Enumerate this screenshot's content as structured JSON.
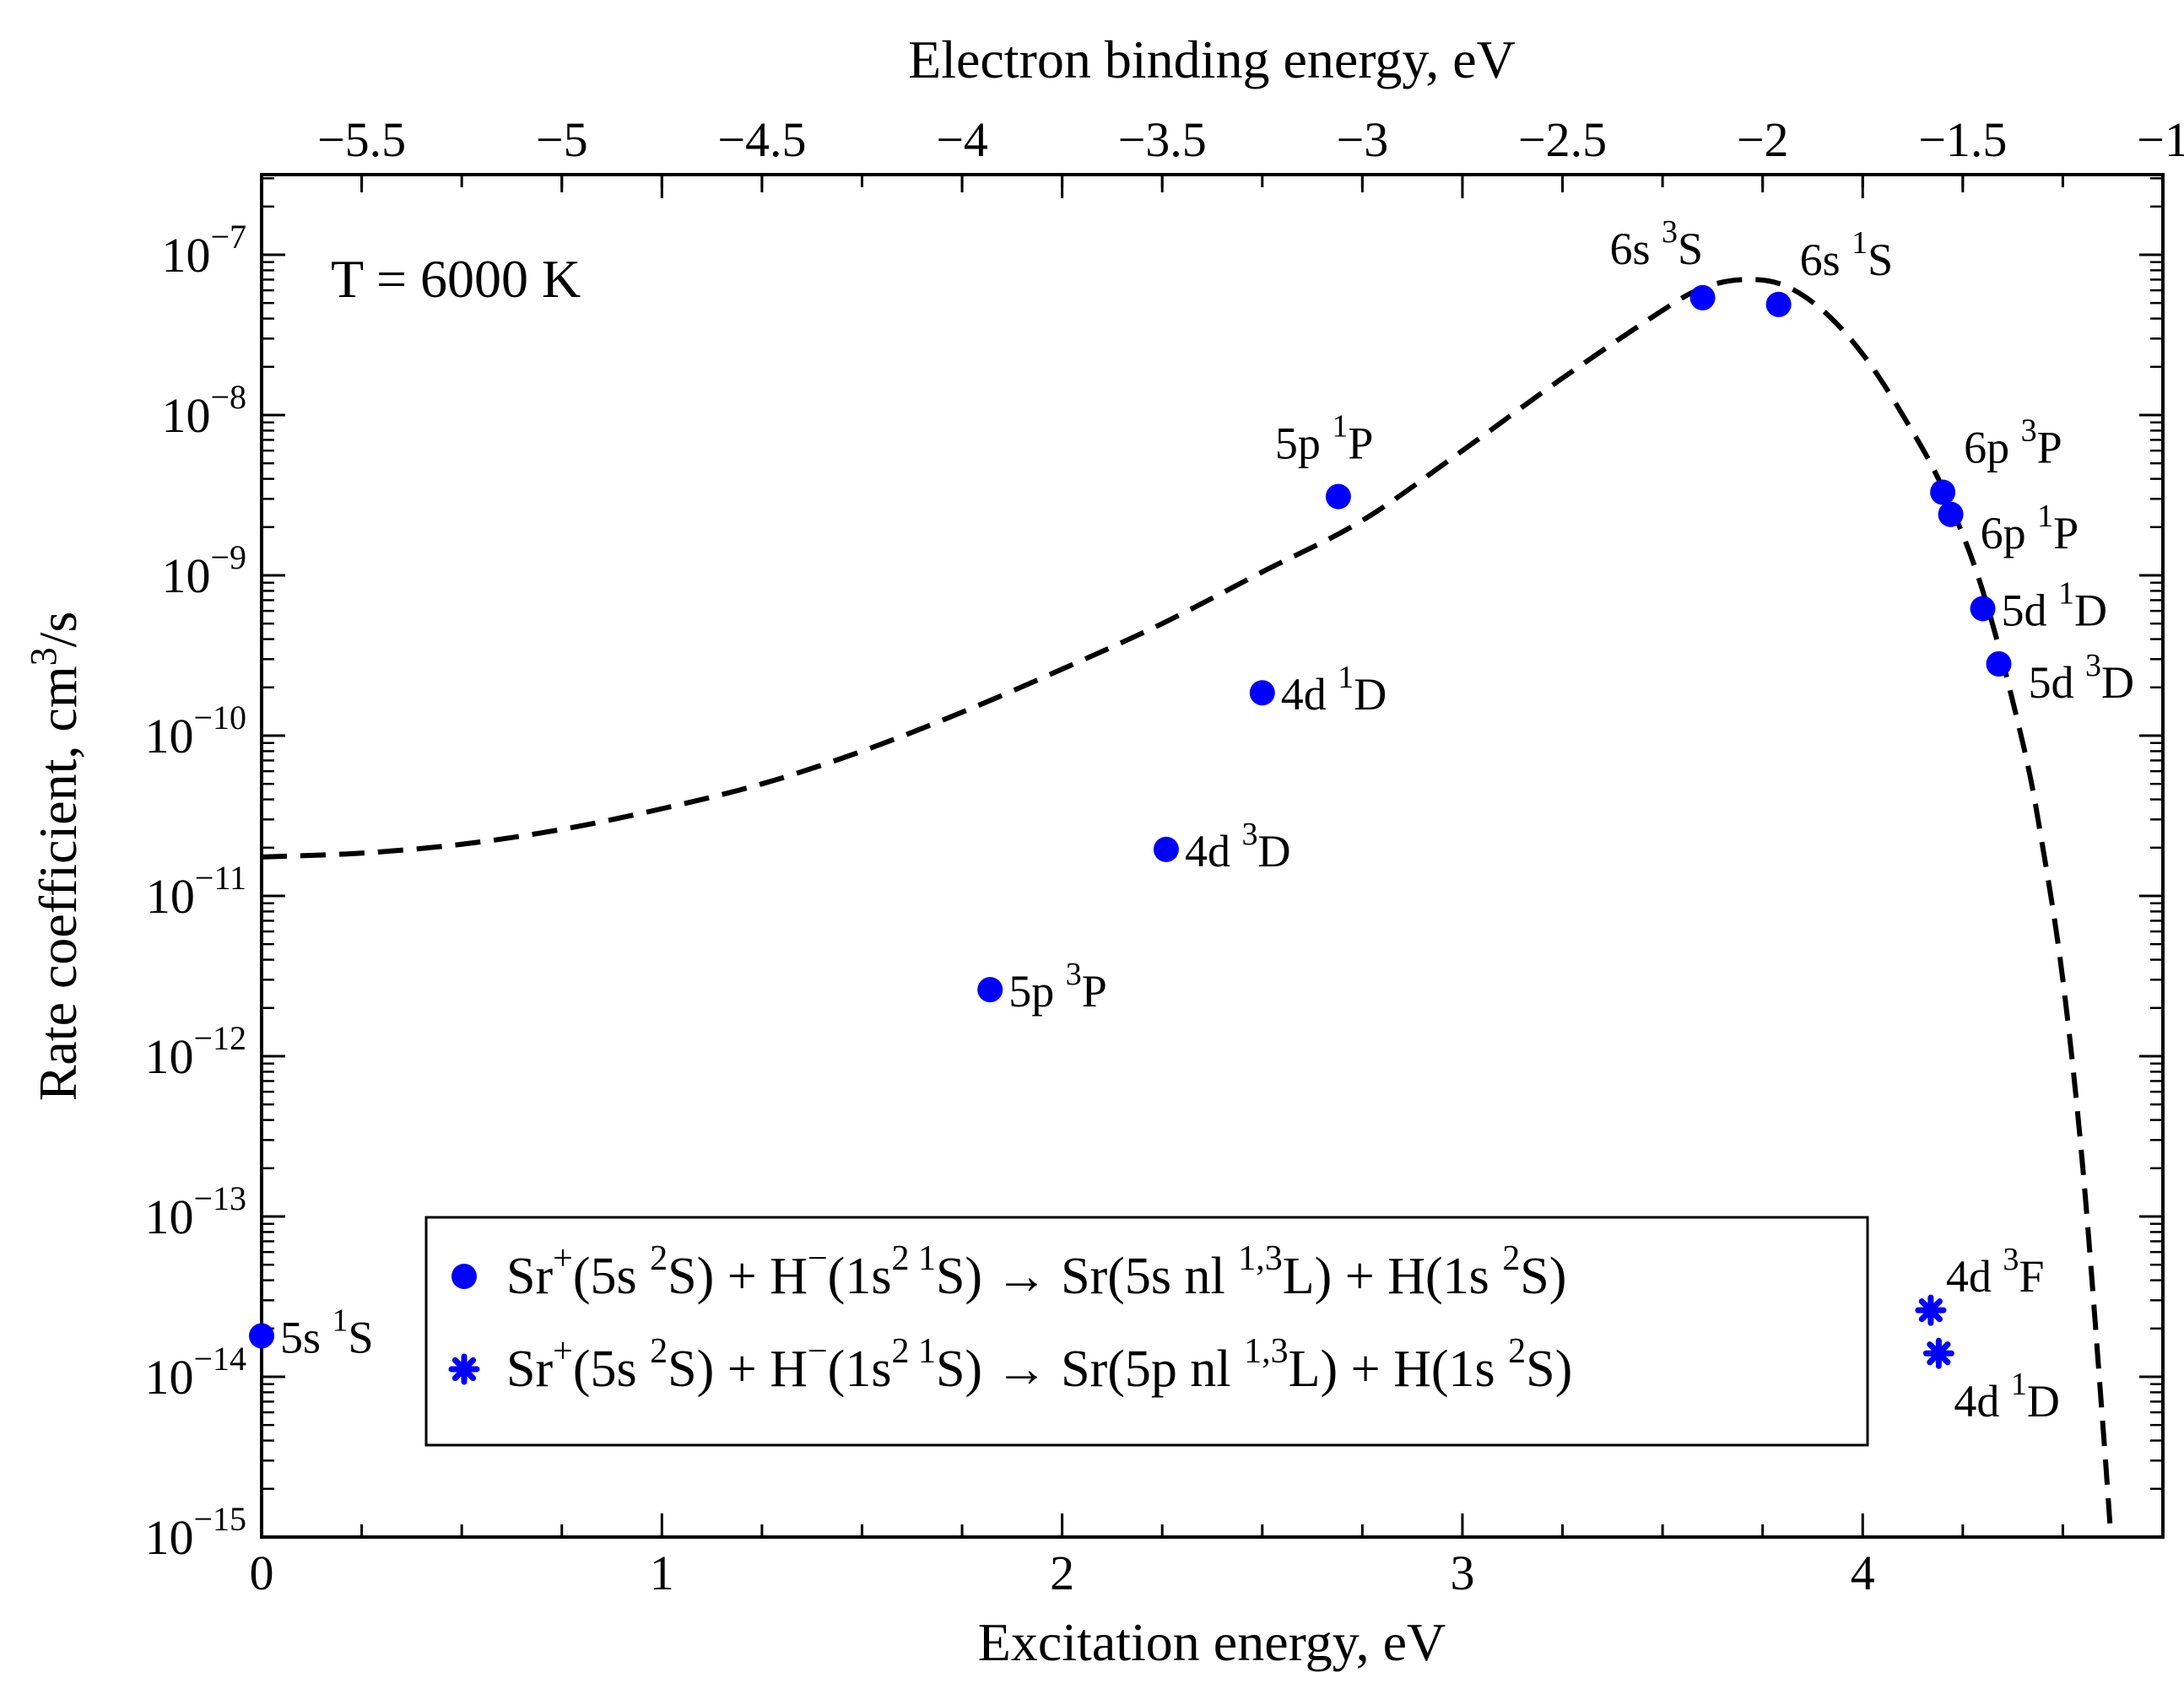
{
  "chart_data": {
    "type": "scatter",
    "temperature_label": "T = 6000 K",
    "xlabel": "Excitation energy, eV",
    "x2label": "Electron binding energy, eV",
    "ylabel": {
      "base": "Rate coefficient, cm",
      "sup": "3",
      "tail": "/s"
    },
    "xlim": [
      0,
      4.75
    ],
    "x2lim": [
      -5.75,
      -1
    ],
    "ylim_log10": [
      -15,
      -6.5
    ],
    "y_scale": "log",
    "x_ticks": [
      "0",
      "1",
      "2",
      "3",
      "4"
    ],
    "x_tick_values": [
      0,
      1,
      2,
      3,
      4
    ],
    "x2_ticks": [
      "−5.5",
      "−5",
      "−4.5",
      "−4",
      "−3.5",
      "−3",
      "−2.5",
      "−2",
      "−1.5",
      "−1"
    ],
    "x2_tick_values": [
      -5.5,
      -5,
      -4.5,
      -4,
      -3.5,
      -3,
      -2.5,
      -2,
      -1.5,
      -1
    ],
    "y_ticks": [
      {
        "base": "10",
        "exp": "−7",
        "log10": -7
      },
      {
        "base": "10",
        "exp": "−8",
        "log10": -8
      },
      {
        "base": "10",
        "exp": "−9",
        "log10": -9
      },
      {
        "base": "10",
        "exp": "−10",
        "log10": -10
      },
      {
        "base": "10",
        "exp": "−11",
        "log10": -11
      },
      {
        "base": "10",
        "exp": "−12",
        "log10": -12
      },
      {
        "base": "10",
        "exp": "−13",
        "log10": -13
      },
      {
        "base": "10",
        "exp": "−14",
        "log10": -14
      },
      {
        "base": "10",
        "exp": "−15",
        "log10": -15
      }
    ],
    "series": [
      {
        "name": "Sr+(5s 2S) + H-(1s2 1S) -> Sr(5s nl 1,3L) + H(1s 2S)",
        "marker": "circle",
        "color": "#0000ff",
        "points": [
          {
            "state": "5s",
            "sup": "1",
            "L": "S",
            "x": 0.0,
            "y": 1.8e-14,
            "anchor": "right"
          },
          {
            "state": "5p",
            "sup": "3",
            "L": "P",
            "x": 1.82,
            "y": 2.6e-12,
            "anchor": "right"
          },
          {
            "state": "4d",
            "sup": "3",
            "L": "D",
            "x": 2.26,
            "y": 1.95e-11,
            "anchor": "right"
          },
          {
            "state": "4d",
            "sup": "1",
            "L": "D",
            "x": 2.5,
            "y": 1.85e-10,
            "anchor": "right"
          },
          {
            "state": "5p",
            "sup": "1",
            "L": "P",
            "x": 2.69,
            "y": 3.1e-09,
            "anchor": "above"
          },
          {
            "state": "6s",
            "sup": "3",
            "L": "S",
            "x": 3.6,
            "y": 5.4e-08,
            "anchor": "above-left"
          },
          {
            "state": "6s",
            "sup": "1",
            "L": "S",
            "x": 3.79,
            "y": 4.9e-08,
            "anchor": "above-right"
          },
          {
            "state": "6p",
            "sup": "3",
            "L": "P",
            "x": 4.2,
            "y": 3.3e-09,
            "anchor": "above-right"
          },
          {
            "state": "6p",
            "sup": "1",
            "L": "P",
            "x": 4.22,
            "y": 2.4e-09,
            "anchor": "below-right"
          },
          {
            "state": "5d",
            "sup": "1",
            "L": "D",
            "x": 4.3,
            "y": 6.2e-10,
            "anchor": "right"
          },
          {
            "state": "5d",
            "sup": "3",
            "L": "D",
            "x": 4.34,
            "y": 2.8e-10,
            "anchor": "below-right"
          }
        ]
      },
      {
        "name": "Sr+(5s 2S) + H-(1s2 1S) -> Sr(5p nl 1,3L) + H(1s 2S)",
        "marker": "asterisk",
        "color": "#0000ff",
        "points": [
          {
            "state": "4d",
            "sup": "3",
            "L": "F",
            "x": 4.17,
            "y": 2.6e-14,
            "anchor": "above-right"
          },
          {
            "state": "4d",
            "sup": "1",
            "L": "D",
            "x": 4.19,
            "y": 1.4e-14,
            "anchor": "below-right"
          }
        ]
      }
    ],
    "curve": {
      "style": "dashed",
      "color": "#000000",
      "points": [
        [
          0.0,
          1.75e-11
        ],
        [
          0.25,
          1.85e-11
        ],
        [
          0.5,
          2.1e-11
        ],
        [
          0.75,
          2.6e-11
        ],
        [
          1.0,
          3.5e-11
        ],
        [
          1.25,
          5e-11
        ],
        [
          1.5,
          8e-11
        ],
        [
          1.75,
          1.4e-10
        ],
        [
          2.0,
          2.6e-10
        ],
        [
          2.25,
          5e-10
        ],
        [
          2.5,
          1.05e-09
        ],
        [
          2.75,
          2.2e-09
        ],
        [
          3.0,
          6e-09
        ],
        [
          3.25,
          1.7e-08
        ],
        [
          3.5,
          4.5e-08
        ],
        [
          3.6,
          6.2e-08
        ],
        [
          3.7,
          7e-08
        ],
        [
          3.8,
          6.5e-08
        ],
        [
          3.9,
          4.5e-08
        ],
        [
          4.0,
          2.4e-08
        ],
        [
          4.1,
          1e-08
        ],
        [
          4.2,
          3.5e-09
        ],
        [
          4.3,
          8e-10
        ],
        [
          4.4,
          9e-11
        ],
        [
          4.45,
          2e-11
        ],
        [
          4.5,
          3e-12
        ],
        [
          4.55,
          2e-13
        ],
        [
          4.6,
          5e-15
        ],
        [
          4.62,
          9e-16
        ]
      ]
    },
    "legend": {
      "placement": "bottom-center",
      "entries": [
        {
          "marker": "circle",
          "parts": [
            {
              "t": "Sr"
            },
            {
              "t": "+",
              "sup": true
            },
            {
              "t": "(5s "
            },
            {
              "t": "2",
              "sup": true
            },
            {
              "t": "S) + H"
            },
            {
              "t": "−",
              "sup": true
            },
            {
              "t": "(1s"
            },
            {
              "t": "2 1",
              "sup": true
            },
            {
              "t": "S)  → Sr(5s nl "
            },
            {
              "t": "1,3",
              "sup": true
            },
            {
              "t": "L) + H(1s "
            },
            {
              "t": "2",
              "sup": true
            },
            {
              "t": "S)"
            }
          ]
        },
        {
          "marker": "asterisk",
          "parts": [
            {
              "t": "Sr"
            },
            {
              "t": "+",
              "sup": true
            },
            {
              "t": "(5s "
            },
            {
              "t": "2",
              "sup": true
            },
            {
              "t": "S) + H"
            },
            {
              "t": "−",
              "sup": true
            },
            {
              "t": "(1s"
            },
            {
              "t": "2 1",
              "sup": true
            },
            {
              "t": "S)  → Sr(5p nl "
            },
            {
              "t": "1,3",
              "sup": true
            },
            {
              "t": "L) + H(1s "
            },
            {
              "t": "2",
              "sup": true
            },
            {
              "t": "S)"
            }
          ]
        }
      ]
    }
  }
}
